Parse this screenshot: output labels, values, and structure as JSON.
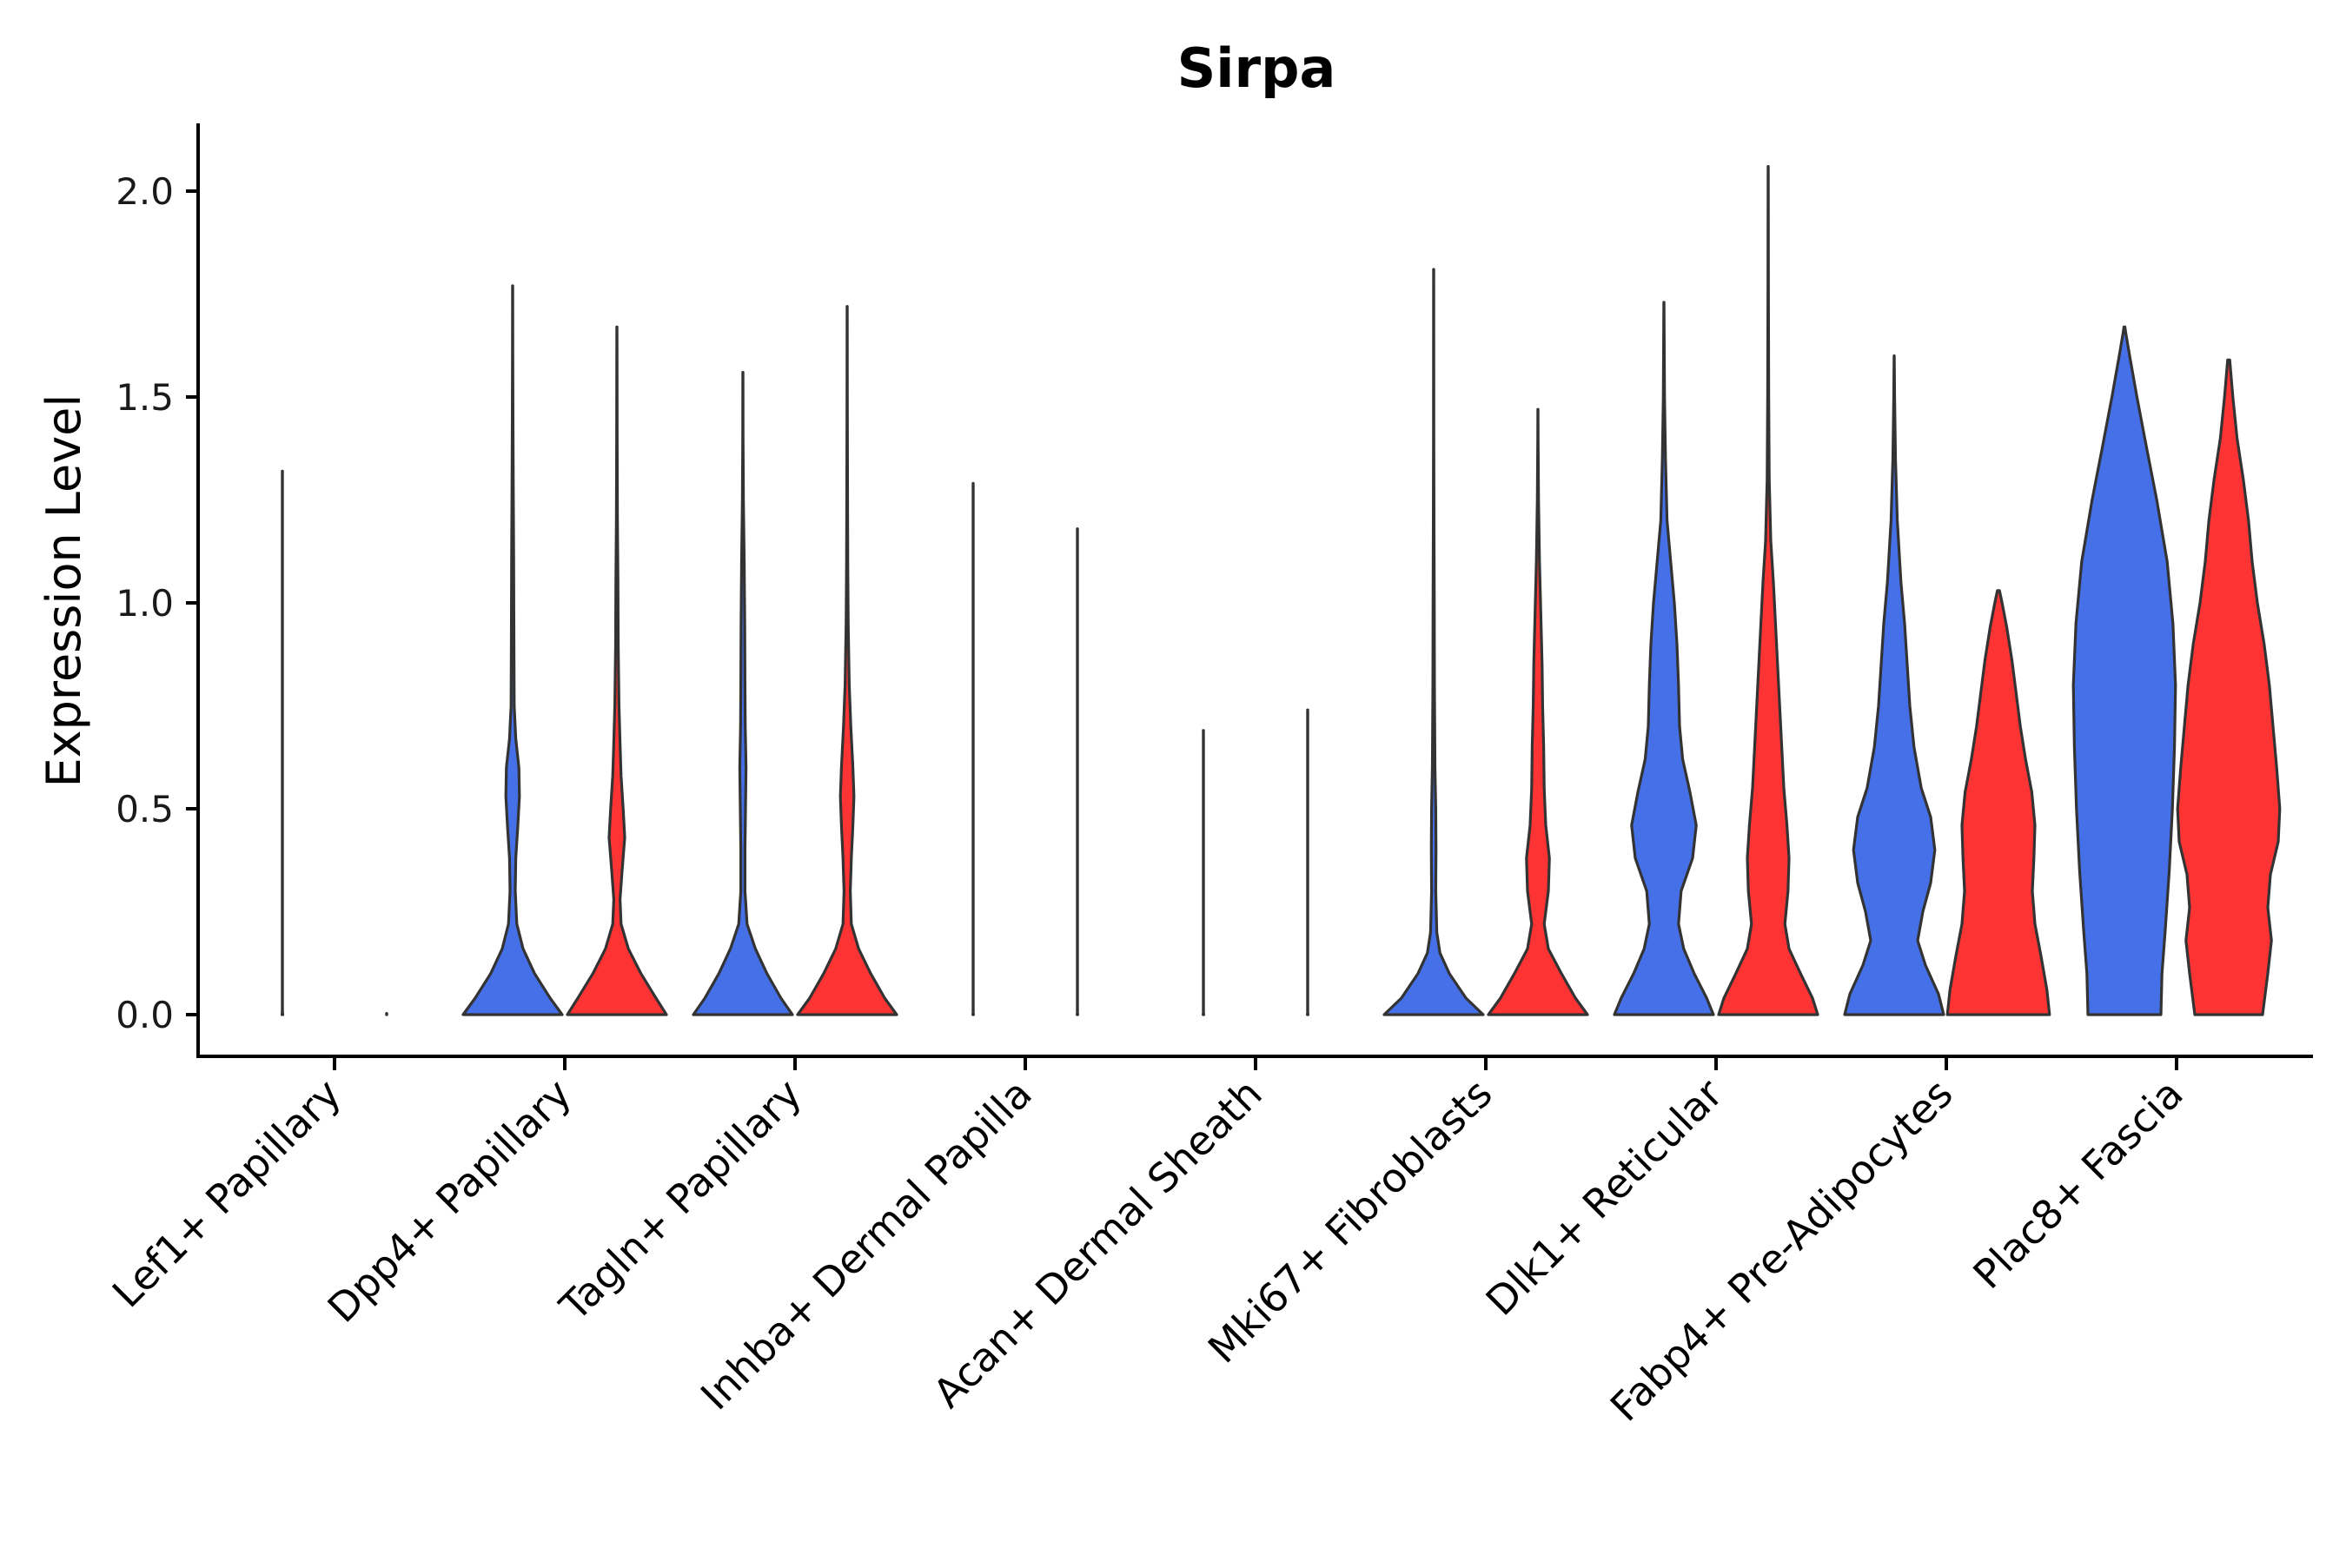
{
  "chart_data": {
    "type": "violin",
    "title": "Sirpa",
    "xlabel": "",
    "ylabel": "Expression Level",
    "ylim": [
      -0.1,
      2.17
    ],
    "yticks": [
      0.0,
      0.5,
      1.0,
      1.5,
      2.0
    ],
    "ytick_labels": [
      "0.0",
      "0.5",
      "1.0",
      "1.5",
      "2.0"
    ],
    "grid": false,
    "legend": "none",
    "colors": {
      "group_a": "#4570e8",
      "group_b": "#fe3434",
      "outline": "#333333"
    },
    "groups": [
      "group_a",
      "group_b"
    ],
    "categories": [
      "Lef1+ Papillary",
      "Dpp4+ Papillary",
      "Tagln+ Papillary",
      "Inhba+ Dermal Papilla",
      "Acan+ Dermal Sheath",
      "Mki67+ Fibroblasts",
      "Dlk1+ Reticular",
      "Fabp4+ Pre-Adipocytes",
      "Plac8+ Fascia"
    ],
    "violins": [
      {
        "category": "Lef1+ Papillary",
        "group": "group_a",
        "max": 1.32,
        "profile": [
          [
            0,
            0.008
          ],
          [
            0.004,
            0.003
          ],
          [
            0.02,
            0.001
          ],
          [
            1.32,
            0.001
          ]
        ]
      },
      {
        "category": "Lef1+ Papillary",
        "group": "group_b",
        "max": 0.0,
        "profile": [
          [
            0,
            0.004
          ],
          [
            0.003,
            0.001
          ]
        ]
      },
      {
        "category": "Dpp4+ Papillary",
        "group": "group_a",
        "max": 1.77,
        "profile": [
          [
            0,
            0.95
          ],
          [
            0.04,
            0.72
          ],
          [
            0.1,
            0.42
          ],
          [
            0.16,
            0.2
          ],
          [
            0.22,
            0.08
          ],
          [
            0.3,
            0.05
          ],
          [
            0.38,
            0.06
          ],
          [
            0.46,
            0.1
          ],
          [
            0.53,
            0.13
          ],
          [
            0.6,
            0.12
          ],
          [
            0.67,
            0.06
          ],
          [
            0.75,
            0.03
          ],
          [
            0.9,
            0.025
          ],
          [
            1.1,
            0.02
          ],
          [
            1.3,
            0.012
          ],
          [
            1.45,
            0.006
          ],
          [
            1.6,
            0.003
          ],
          [
            1.77,
            0.002
          ]
        ]
      },
      {
        "category": "Dpp4+ Papillary",
        "group": "group_b",
        "max": 1.67,
        "profile": [
          [
            0,
            0.95
          ],
          [
            0.04,
            0.75
          ],
          [
            0.1,
            0.46
          ],
          [
            0.16,
            0.22
          ],
          [
            0.22,
            0.08
          ],
          [
            0.28,
            0.06
          ],
          [
            0.35,
            0.1
          ],
          [
            0.43,
            0.15
          ],
          [
            0.5,
            0.12
          ],
          [
            0.58,
            0.08
          ],
          [
            0.66,
            0.06
          ],
          [
            0.75,
            0.04
          ],
          [
            0.9,
            0.025
          ],
          [
            1.05,
            0.02
          ],
          [
            1.2,
            0.01
          ],
          [
            1.4,
            0.005
          ],
          [
            1.55,
            0.003
          ],
          [
            1.67,
            0.002
          ]
        ]
      },
      {
        "category": "Tagln+ Papillary",
        "group": "group_a",
        "max": 1.56,
        "profile": [
          [
            0,
            0.95
          ],
          [
            0.04,
            0.73
          ],
          [
            0.1,
            0.46
          ],
          [
            0.16,
            0.24
          ],
          [
            0.22,
            0.08
          ],
          [
            0.3,
            0.04
          ],
          [
            0.4,
            0.04
          ],
          [
            0.5,
            0.05
          ],
          [
            0.6,
            0.06
          ],
          [
            0.7,
            0.045
          ],
          [
            0.8,
            0.04
          ],
          [
            0.95,
            0.035
          ],
          [
            1.1,
            0.025
          ],
          [
            1.25,
            0.01
          ],
          [
            1.4,
            0.004
          ],
          [
            1.56,
            0.002
          ]
        ]
      },
      {
        "category": "Tagln+ Papillary",
        "group": "group_b",
        "max": 1.72,
        "profile": [
          [
            0,
            0.95
          ],
          [
            0.04,
            0.72
          ],
          [
            0.1,
            0.45
          ],
          [
            0.16,
            0.22
          ],
          [
            0.22,
            0.08
          ],
          [
            0.3,
            0.06
          ],
          [
            0.38,
            0.08
          ],
          [
            0.46,
            0.11
          ],
          [
            0.53,
            0.13
          ],
          [
            0.6,
            0.11
          ],
          [
            0.7,
            0.07
          ],
          [
            0.8,
            0.04
          ],
          [
            0.95,
            0.02
          ],
          [
            1.1,
            0.012
          ],
          [
            1.3,
            0.006
          ],
          [
            1.5,
            0.003
          ],
          [
            1.72,
            0.002
          ]
        ]
      },
      {
        "category": "Inhba+ Dermal Papilla",
        "group": "group_a",
        "max": 1.29,
        "profile": [
          [
            0,
            0.006
          ],
          [
            0.004,
            0.002
          ],
          [
            0.02,
            0.001
          ],
          [
            1.29,
            0.001
          ]
        ]
      },
      {
        "category": "Inhba+ Dermal Papilla",
        "group": "group_b",
        "max": 1.18,
        "profile": [
          [
            0,
            0.006
          ],
          [
            0.004,
            0.002
          ],
          [
            0.02,
            0.001
          ],
          [
            1.18,
            0.001
          ]
        ]
      },
      {
        "category": "Acan+ Dermal Sheath",
        "group": "group_a",
        "max": 0.69,
        "profile": [
          [
            0,
            0.006
          ],
          [
            0.004,
            0.002
          ],
          [
            0.02,
            0.001
          ],
          [
            0.69,
            0.001
          ]
        ]
      },
      {
        "category": "Acan+ Dermal Sheath",
        "group": "group_b",
        "max": 0.74,
        "profile": [
          [
            0,
            0.006
          ],
          [
            0.004,
            0.002
          ],
          [
            0.02,
            0.001
          ],
          [
            0.74,
            0.001
          ]
        ]
      },
      {
        "category": "Mki67+ Fibroblasts",
        "group": "group_a",
        "max": 1.81,
        "profile": [
          [
            0,
            0.95
          ],
          [
            0.04,
            0.62
          ],
          [
            0.1,
            0.3
          ],
          [
            0.15,
            0.12
          ],
          [
            0.2,
            0.06
          ],
          [
            0.3,
            0.04
          ],
          [
            0.4,
            0.045
          ],
          [
            0.5,
            0.04
          ],
          [
            0.6,
            0.025
          ],
          [
            0.8,
            0.015
          ],
          [
            1.0,
            0.012
          ],
          [
            1.2,
            0.006
          ],
          [
            1.4,
            0.003
          ],
          [
            1.81,
            0.002
          ]
        ]
      },
      {
        "category": "Mki67+ Fibroblasts",
        "group": "group_b",
        "max": 1.47,
        "profile": [
          [
            0,
            0.95
          ],
          [
            0.04,
            0.72
          ],
          [
            0.1,
            0.45
          ],
          [
            0.16,
            0.2
          ],
          [
            0.22,
            0.12
          ],
          [
            0.3,
            0.2
          ],
          [
            0.38,
            0.22
          ],
          [
            0.46,
            0.15
          ],
          [
            0.55,
            0.12
          ],
          [
            0.65,
            0.11
          ],
          [
            0.75,
            0.09
          ],
          [
            0.85,
            0.08
          ],
          [
            0.95,
            0.06
          ],
          [
            1.1,
            0.03
          ],
          [
            1.25,
            0.012
          ],
          [
            1.4,
            0.004
          ],
          [
            1.47,
            0.002
          ]
        ]
      },
      {
        "category": "Dlk1+ Reticular",
        "group": "group_a",
        "max": 1.73,
        "profile": [
          [
            0,
            0.95
          ],
          [
            0.04,
            0.82
          ],
          [
            0.1,
            0.58
          ],
          [
            0.16,
            0.38
          ],
          [
            0.22,
            0.28
          ],
          [
            0.3,
            0.33
          ],
          [
            0.38,
            0.55
          ],
          [
            0.46,
            0.62
          ],
          [
            0.54,
            0.5
          ],
          [
            0.62,
            0.36
          ],
          [
            0.7,
            0.3
          ],
          [
            0.8,
            0.28
          ],
          [
            0.9,
            0.25
          ],
          [
            1.0,
            0.2
          ],
          [
            1.1,
            0.13
          ],
          [
            1.2,
            0.06
          ],
          [
            1.35,
            0.03
          ],
          [
            1.5,
            0.012
          ],
          [
            1.73,
            0.002
          ]
        ]
      },
      {
        "category": "Dlk1+ Reticular",
        "group": "group_b",
        "max": 2.06,
        "profile": [
          [
            0,
            0.95
          ],
          [
            0.04,
            0.85
          ],
          [
            0.1,
            0.62
          ],
          [
            0.16,
            0.4
          ],
          [
            0.22,
            0.32
          ],
          [
            0.3,
            0.38
          ],
          [
            0.38,
            0.4
          ],
          [
            0.46,
            0.36
          ],
          [
            0.55,
            0.3
          ],
          [
            0.65,
            0.26
          ],
          [
            0.75,
            0.22
          ],
          [
            0.85,
            0.18
          ],
          [
            0.95,
            0.14
          ],
          [
            1.05,
            0.1
          ],
          [
            1.15,
            0.05
          ],
          [
            1.3,
            0.02
          ],
          [
            1.5,
            0.01
          ],
          [
            1.75,
            0.005
          ],
          [
            2.06,
            0.002
          ]
        ]
      },
      {
        "category": "Fabp4+ Pre-Adipocytes",
        "group": "group_a",
        "max": 1.6,
        "profile": [
          [
            0,
            0.95
          ],
          [
            0.05,
            0.85
          ],
          [
            0.12,
            0.6
          ],
          [
            0.18,
            0.45
          ],
          [
            0.25,
            0.55
          ],
          [
            0.32,
            0.7
          ],
          [
            0.4,
            0.78
          ],
          [
            0.48,
            0.7
          ],
          [
            0.55,
            0.52
          ],
          [
            0.65,
            0.38
          ],
          [
            0.75,
            0.3
          ],
          [
            0.85,
            0.25
          ],
          [
            0.95,
            0.2
          ],
          [
            1.05,
            0.13
          ],
          [
            1.2,
            0.06
          ],
          [
            1.35,
            0.025
          ],
          [
            1.5,
            0.008
          ],
          [
            1.6,
            0.002
          ]
        ]
      },
      {
        "category": "Fabp4+ Pre-Adipocytes",
        "group": "group_b",
        "max": 1.03,
        "profile": [
          [
            0,
            0.98
          ],
          [
            0.06,
            0.93
          ],
          [
            0.14,
            0.82
          ],
          [
            0.22,
            0.7
          ],
          [
            0.3,
            0.65
          ],
          [
            0.38,
            0.68
          ],
          [
            0.46,
            0.7
          ],
          [
            0.54,
            0.64
          ],
          [
            0.62,
            0.52
          ],
          [
            0.7,
            0.42
          ],
          [
            0.78,
            0.34
          ],
          [
            0.86,
            0.26
          ],
          [
            0.94,
            0.16
          ],
          [
            1.0,
            0.07
          ],
          [
            1.03,
            0.02
          ]
        ]
      },
      {
        "category": "Plac8+ Fascia",
        "group": "group_a",
        "max": 1.67,
        "profile": [
          [
            0,
            0.7
          ],
          [
            0.1,
            0.72
          ],
          [
            0.2,
            0.78
          ],
          [
            0.35,
            0.86
          ],
          [
            0.5,
            0.92
          ],
          [
            0.65,
            0.96
          ],
          [
            0.8,
            0.98
          ],
          [
            0.95,
            0.93
          ],
          [
            1.1,
            0.82
          ],
          [
            1.25,
            0.62
          ],
          [
            1.38,
            0.42
          ],
          [
            1.5,
            0.24
          ],
          [
            1.6,
            0.1
          ],
          [
            1.66,
            0.02
          ],
          [
            1.67,
            0.01
          ]
        ]
      },
      {
        "category": "Plac8+ Fascia",
        "group": "group_b",
        "max": 1.59,
        "profile": [
          [
            0,
            0.65
          ],
          [
            0.1,
            0.75
          ],
          [
            0.18,
            0.82
          ],
          [
            0.26,
            0.75
          ],
          [
            0.34,
            0.8
          ],
          [
            0.42,
            0.95
          ],
          [
            0.5,
            0.98
          ],
          [
            0.6,
            0.92
          ],
          [
            0.7,
            0.85
          ],
          [
            0.8,
            0.78
          ],
          [
            0.9,
            0.68
          ],
          [
            1.0,
            0.55
          ],
          [
            1.1,
            0.45
          ],
          [
            1.2,
            0.38
          ],
          [
            1.3,
            0.28
          ],
          [
            1.4,
            0.16
          ],
          [
            1.5,
            0.08
          ],
          [
            1.56,
            0.04
          ],
          [
            1.59,
            0.02
          ]
        ]
      }
    ]
  }
}
